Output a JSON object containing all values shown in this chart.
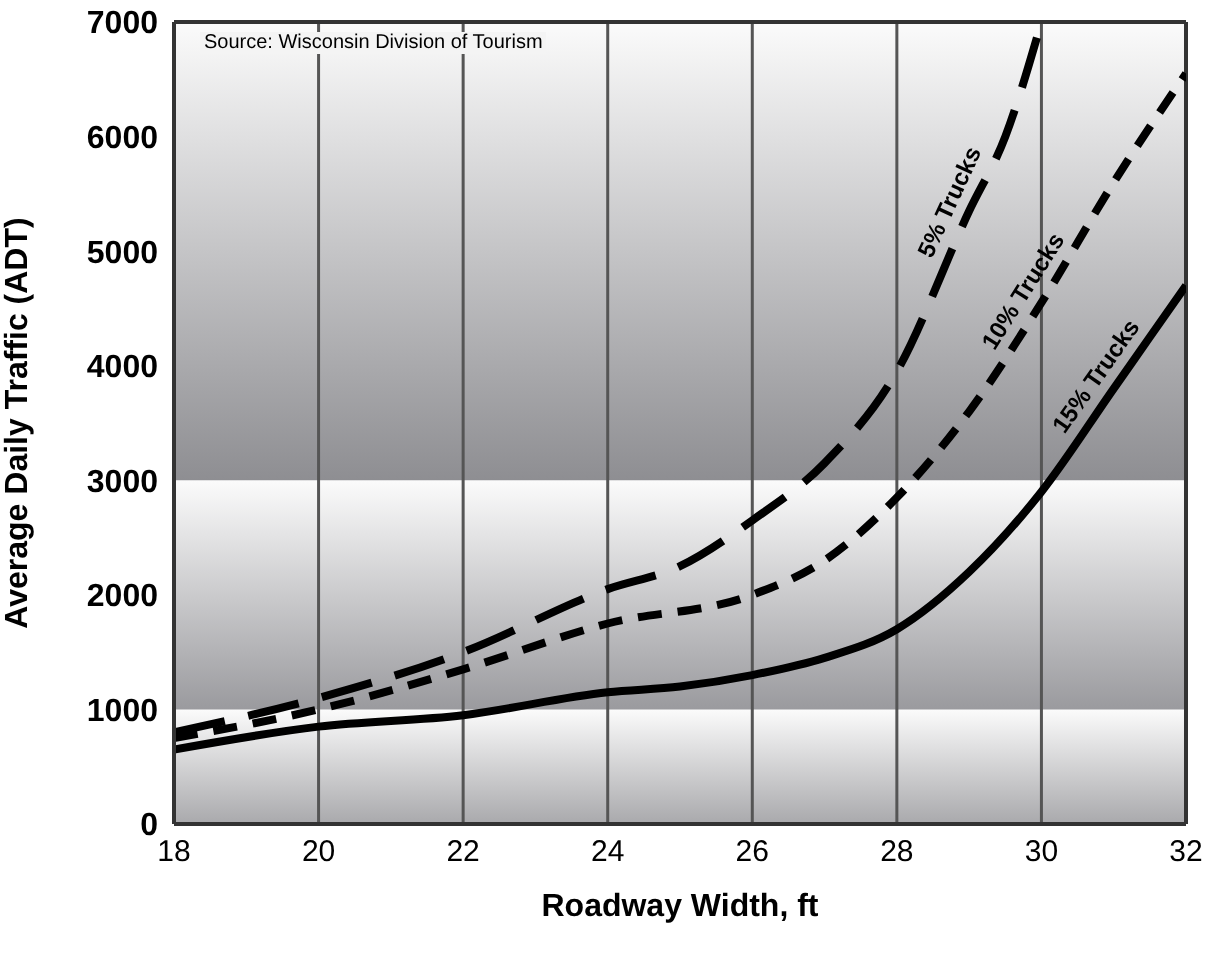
{
  "chart_data": {
    "type": "line",
    "xlabel": "Roadway Width, ft",
    "ylabel": "Average Daily Traffic (ADT)",
    "annotations": [
      "Source: Wisconsin Division of Tourism"
    ],
    "xlim": [
      18,
      32
    ],
    "xticks": [
      18,
      20,
      22,
      24,
      26,
      28,
      30,
      32
    ],
    "ylim": [
      0,
      7000
    ],
    "yticks": [
      0,
      1000,
      2000,
      3000,
      4000,
      5000,
      6000,
      7000
    ],
    "grid": "x",
    "marker": "none",
    "bands": [
      {
        "axis": "y",
        "from": 0,
        "to": 1000,
        "color": "#a9a9ac"
      },
      {
        "axis": "y",
        "from": 1000,
        "to": 3000,
        "color": "#9a9a9e"
      },
      {
        "axis": "y",
        "from": 3000,
        "to": 7000,
        "color": "#8e8e92"
      }
    ],
    "series": [
      {
        "name": "5% Trucks",
        "color": "#000000",
        "line_style": "dashed",
        "x": [
          18,
          20,
          22,
          24,
          25,
          26,
          27,
          28,
          29,
          29.5,
          30
        ],
        "values": [
          800,
          1100,
          1500,
          2050,
          2250,
          2650,
          3150,
          3950,
          5350,
          6000,
          7000
        ]
      },
      {
        "name": "10% Trucks",
        "color": "#000000",
        "line_style": "dashed",
        "x": [
          18,
          20,
          22,
          24,
          26,
          27,
          28,
          29,
          30,
          31,
          32
        ],
        "values": [
          750,
          1000,
          1350,
          1750,
          2000,
          2300,
          2850,
          3600,
          4550,
          5600,
          6550
        ]
      },
      {
        "name": "15% Trucks",
        "color": "#000000",
        "line_style": "solid",
        "x": [
          18,
          20,
          22,
          24,
          25,
          26,
          27,
          28,
          29,
          30,
          31,
          31.5,
          32
        ],
        "values": [
          650,
          850,
          950,
          1150,
          1200,
          1300,
          1450,
          1700,
          2200,
          2900,
          3800,
          4250,
          4700
        ]
      }
    ]
  }
}
